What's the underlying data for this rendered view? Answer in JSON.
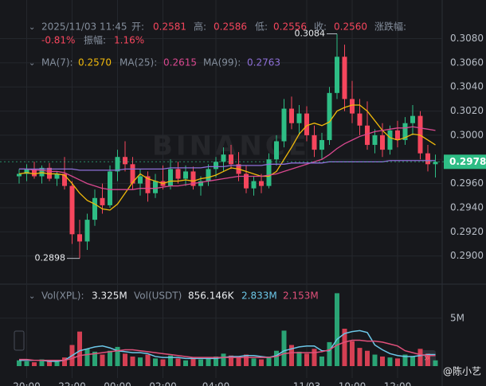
{
  "chart_data": {
    "type": "candlestick",
    "header": [
      "2025/11/03 11:45",
      "开:",
      "0.2581",
      "高:",
      "0.2586",
      "低:",
      "0.2556",
      "收:",
      "0.2560",
      "涨跌幅:",
      "-0.81%",
      "振幅:",
      "1.16%"
    ],
    "ma_header": [
      "MA(7):",
      "0.2570",
      "MA(25):",
      "0.2615",
      "MA(99):",
      "0.2763"
    ],
    "vol_header": [
      "Vol(XPL):",
      "3.325M",
      "Vol(USDT)",
      "856.146K",
      "2.833M",
      "2.153M"
    ],
    "watermark": "BINANCE",
    "credit": "@陈小艺",
    "up_color": "#2ebd85",
    "down_color": "#f6465d",
    "categories": [
      null,
      "20:00",
      null,
      null,
      null,
      null,
      null,
      "22:00",
      null,
      null,
      null,
      null,
      null,
      "00:00",
      null,
      null,
      null,
      null,
      null,
      "02:00",
      null,
      null,
      null,
      null,
      null,
      null,
      "04:00",
      null,
      null,
      null,
      null,
      null,
      null,
      null,
      null,
      null,
      null,
      null,
      "11/03",
      null,
      null,
      null,
      null,
      null,
      "10:00",
      null,
      null,
      null,
      null,
      null,
      "12:00",
      null,
      null,
      null,
      null,
      null
    ],
    "ohlc": [
      [
        0.2966,
        0.2972,
        0.296,
        0.2968
      ],
      [
        0.2968,
        0.2976,
        0.2962,
        0.2972
      ],
      [
        0.2972,
        0.2978,
        0.2964,
        0.2966
      ],
      [
        0.2966,
        0.2975,
        0.296,
        0.2973
      ],
      [
        0.2973,
        0.2977,
        0.2962,
        0.2964
      ],
      [
        0.2964,
        0.297,
        0.2958,
        0.2968
      ],
      [
        0.2968,
        0.2982,
        0.2955,
        0.2958
      ],
      [
        0.2958,
        0.2962,
        0.291,
        0.2918
      ],
      [
        0.2918,
        0.293,
        0.2898,
        0.2912
      ],
      [
        0.2912,
        0.2935,
        0.2905,
        0.293
      ],
      [
        0.293,
        0.2955,
        0.2925,
        0.2948
      ],
      [
        0.2948,
        0.296,
        0.2935,
        0.2942
      ],
      [
        0.2942,
        0.2975,
        0.294,
        0.297
      ],
      [
        0.297,
        0.2988,
        0.2962,
        0.2982
      ],
      [
        0.2982,
        0.2995,
        0.297,
        0.2976
      ],
      [
        0.2976,
        0.2982,
        0.2955,
        0.296
      ],
      [
        0.296,
        0.2972,
        0.295,
        0.2966
      ],
      [
        0.2966,
        0.297,
        0.2945,
        0.2952
      ],
      [
        0.2952,
        0.2968,
        0.2948,
        0.2962
      ],
      [
        0.2962,
        0.2975,
        0.2955,
        0.2958
      ],
      [
        0.2958,
        0.298,
        0.2955,
        0.2972
      ],
      [
        0.2972,
        0.2978,
        0.296,
        0.2964
      ],
      [
        0.2964,
        0.2975,
        0.2958,
        0.297
      ],
      [
        0.297,
        0.2974,
        0.2955,
        0.2958
      ],
      [
        0.2958,
        0.2966,
        0.295,
        0.2962
      ],
      [
        0.2962,
        0.2976,
        0.2958,
        0.2972
      ],
      [
        0.2972,
        0.2982,
        0.2965,
        0.2978
      ],
      [
        0.2978,
        0.299,
        0.297,
        0.2984
      ],
      [
        0.2984,
        0.2992,
        0.2972,
        0.2976
      ],
      [
        0.2976,
        0.2986,
        0.2962,
        0.2968
      ],
      [
        0.2968,
        0.2975,
        0.2952,
        0.2956
      ],
      [
        0.2956,
        0.2966,
        0.295,
        0.2962
      ],
      [
        0.2962,
        0.2968,
        0.2952,
        0.2958
      ],
      [
        0.2958,
        0.2985,
        0.2956,
        0.298
      ],
      [
        0.298,
        0.3,
        0.2975,
        0.2995
      ],
      [
        0.2995,
        0.303,
        0.299,
        0.3022
      ],
      [
        0.3022,
        0.3032,
        0.3005,
        0.301
      ],
      [
        0.301,
        0.3025,
        0.3,
        0.3018
      ],
      [
        0.3018,
        0.3024,
        0.2995,
        0.3
      ],
      [
        0.3,
        0.3008,
        0.2982,
        0.2988
      ],
      [
        0.2988,
        0.3002,
        0.298,
        0.2996
      ],
      [
        0.2996,
        0.304,
        0.2992,
        0.3035
      ],
      [
        0.3035,
        0.3084,
        0.303,
        0.3065
      ],
      [
        0.3065,
        0.3075,
        0.302,
        0.303
      ],
      [
        0.303,
        0.3045,
        0.301,
        0.3018
      ],
      [
        0.3018,
        0.303,
        0.3,
        0.3008
      ],
      [
        0.3008,
        0.3028,
        0.2988,
        0.2992
      ],
      [
        0.2992,
        0.3005,
        0.2985,
        0.3
      ],
      [
        0.3,
        0.301,
        0.2982,
        0.2988
      ],
      [
        0.2988,
        0.3008,
        0.2984,
        0.3004
      ],
      [
        0.3004,
        0.3012,
        0.299,
        0.2996
      ],
      [
        0.2996,
        0.3015,
        0.2992,
        0.301
      ],
      [
        0.301,
        0.3025,
        0.3,
        0.3016
      ],
      [
        0.3016,
        0.302,
        0.298,
        0.2985
      ],
      [
        0.2985,
        0.2992,
        0.297,
        0.2976
      ],
      [
        0.2976,
        0.2984,
        0.2965,
        0.2978
      ]
    ],
    "ma_series": [
      {
        "name": "MA(7)",
        "color": "#f0b90b",
        "values": [
          0.2968,
          0.2969,
          0.2968,
          0.2969,
          0.2968,
          0.2968,
          0.2967,
          0.296,
          0.2952,
          0.2946,
          0.2943,
          0.2939,
          0.2938,
          0.2943,
          0.2952,
          0.2961,
          0.2968,
          0.2964,
          0.2962,
          0.296,
          0.2962,
          0.2962,
          0.2963,
          0.2962,
          0.2964,
          0.2965,
          0.2967,
          0.297,
          0.2973,
          0.2972,
          0.297,
          0.2968,
          0.2966,
          0.2966,
          0.297,
          0.298,
          0.299,
          0.3001,
          0.3008,
          0.301,
          0.3008,
          0.3011,
          0.302,
          0.3023,
          0.3025,
          0.3025,
          0.302,
          0.3012,
          0.3004,
          0.2998,
          0.2996,
          0.2998,
          0.3001,
          0.3,
          0.2996,
          0.2992
        ]
      },
      {
        "name": "MA(25)",
        "color": "#d9488f",
        "values": [
          0.2972,
          0.2972,
          0.2971,
          0.2971,
          0.297,
          0.297,
          0.2969,
          0.2966,
          0.2963,
          0.296,
          0.2958,
          0.2956,
          0.2955,
          0.2955,
          0.2955,
          0.2955,
          0.2956,
          0.2956,
          0.2956,
          0.2957,
          0.2958,
          0.2958,
          0.2959,
          0.296,
          0.2961,
          0.2962,
          0.2963,
          0.2964,
          0.2965,
          0.2966,
          0.2966,
          0.2966,
          0.2966,
          0.2967,
          0.2968,
          0.297,
          0.2972,
          0.2974,
          0.2976,
          0.2978,
          0.298,
          0.2984,
          0.2989,
          0.2993,
          0.2996,
          0.2999,
          0.3001,
          0.3003,
          0.3004,
          0.3005,
          0.3006,
          0.3006,
          0.3007,
          0.3006,
          0.3005,
          0.3004
        ]
      },
      {
        "name": "MA(99)",
        "color": "#8e6fd8",
        "values": [
          0.2972,
          0.2972,
          0.2972,
          0.2972,
          0.2972,
          0.2972,
          0.2972,
          0.2972,
          0.2971,
          0.2971,
          0.2971,
          0.2971,
          0.2971,
          0.2971,
          0.2972,
          0.2972,
          0.2972,
          0.2972,
          0.2972,
          0.2972,
          0.2973,
          0.2973,
          0.2973,
          0.2973,
          0.2973,
          0.2974,
          0.2974,
          0.2974,
          0.2975,
          0.2975,
          0.2975,
          0.2975,
          0.2975,
          0.2976,
          0.2976,
          0.2976,
          0.2977,
          0.2977,
          0.2977,
          0.2977,
          0.2977,
          0.2978,
          0.2978,
          0.2978,
          0.2978,
          0.2978,
          0.2978,
          0.2978,
          0.2978,
          0.2979,
          0.2979,
          0.2979,
          0.2979,
          0.2979,
          0.2979,
          0.2979
        ]
      }
    ],
    "ylim": [
      0.2878,
      0.3112
    ],
    "yticks": [
      {
        "value": 0.29,
        "label": "0.2900"
      },
      {
        "value": 0.292,
        "label": "0.2920"
      },
      {
        "value": 0.294,
        "label": "0.2940"
      },
      {
        "value": 0.296,
        "label": "0.2960"
      },
      {
        "value": 0.298,
        "label": "0.2980"
      },
      {
        "value": 0.3,
        "label": "0.3000"
      },
      {
        "value": 0.302,
        "label": "0.3020"
      },
      {
        "value": 0.304,
        "label": "0.3040"
      },
      {
        "value": 0.306,
        "label": "0.3060"
      },
      {
        "value": 0.308,
        "label": "0.3080"
      }
    ],
    "volume": [
      0.6,
      0.5,
      0.4,
      0.7,
      0.5,
      0.6,
      0.9,
      2.2,
      3.6,
      1.8,
      1.5,
      1.2,
      1.6,
      2.0,
      1.3,
      1.0,
      0.9,
      1.2,
      0.8,
      0.7,
      1.1,
      0.8,
      0.6,
      0.9,
      0.7,
      0.8,
      1.0,
      1.3,
      1.1,
      0.9,
      1.2,
      0.8,
      0.7,
      1.0,
      1.6,
      3.7,
      2.2,
      1.5,
      1.3,
      1.8,
      1.0,
      2.5,
      7.6,
      3.9,
      2.6,
      1.9,
      1.6,
      1.2,
      1.0,
      0.9,
      0.8,
      1.2,
      1.0,
      1.8,
      1.3,
      0.6
    ],
    "vol_ma_series": [
      {
        "color": "#6cc7e8",
        "values": [
          0.6,
          0.6,
          0.6,
          0.6,
          0.5,
          0.5,
          0.6,
          1.1,
          1.6,
          1.8,
          2.0,
          2.1,
          1.9,
          1.6,
          1.5,
          1.4,
          1.4,
          1.3,
          1.0,
          0.9,
          0.9,
          0.9,
          0.8,
          0.8,
          0.8,
          0.8,
          0.8,
          0.9,
          1.0,
          1.0,
          1.1,
          1.1,
          1.0,
          0.9,
          1.1,
          1.6,
          1.8,
          2.0,
          2.1,
          2.1,
          1.6,
          1.6,
          2.8,
          3.4,
          3.6,
          3.7,
          3.5,
          2.2,
          1.7,
          1.3,
          1.1,
          1.0,
          1.0,
          1.1,
          1.2,
          1.2
        ]
      },
      {
        "color": "#e0507a",
        "values": [
          0.7,
          0.7,
          0.6,
          0.6,
          0.6,
          0.6,
          0.6,
          0.8,
          1.1,
          1.2,
          1.3,
          1.4,
          1.5,
          1.6,
          1.7,
          1.7,
          1.6,
          1.5,
          1.4,
          1.3,
          1.2,
          1.1,
          1.0,
          0.9,
          0.9,
          0.9,
          0.9,
          0.9,
          0.9,
          0.9,
          0.9,
          0.9,
          0.9,
          0.9,
          1.0,
          1.3,
          1.4,
          1.4,
          1.4,
          1.4,
          1.5,
          1.7,
          2.2,
          2.5,
          2.7,
          2.7,
          2.6,
          2.6,
          2.5,
          2.3,
          2.1,
          1.6,
          1.4,
          1.2,
          1.1,
          1.1
        ]
      }
    ],
    "vlim": [
      0,
      8.3
    ],
    "vticks": [
      {
        "value": 5,
        "label": "5M"
      }
    ]
  }
}
